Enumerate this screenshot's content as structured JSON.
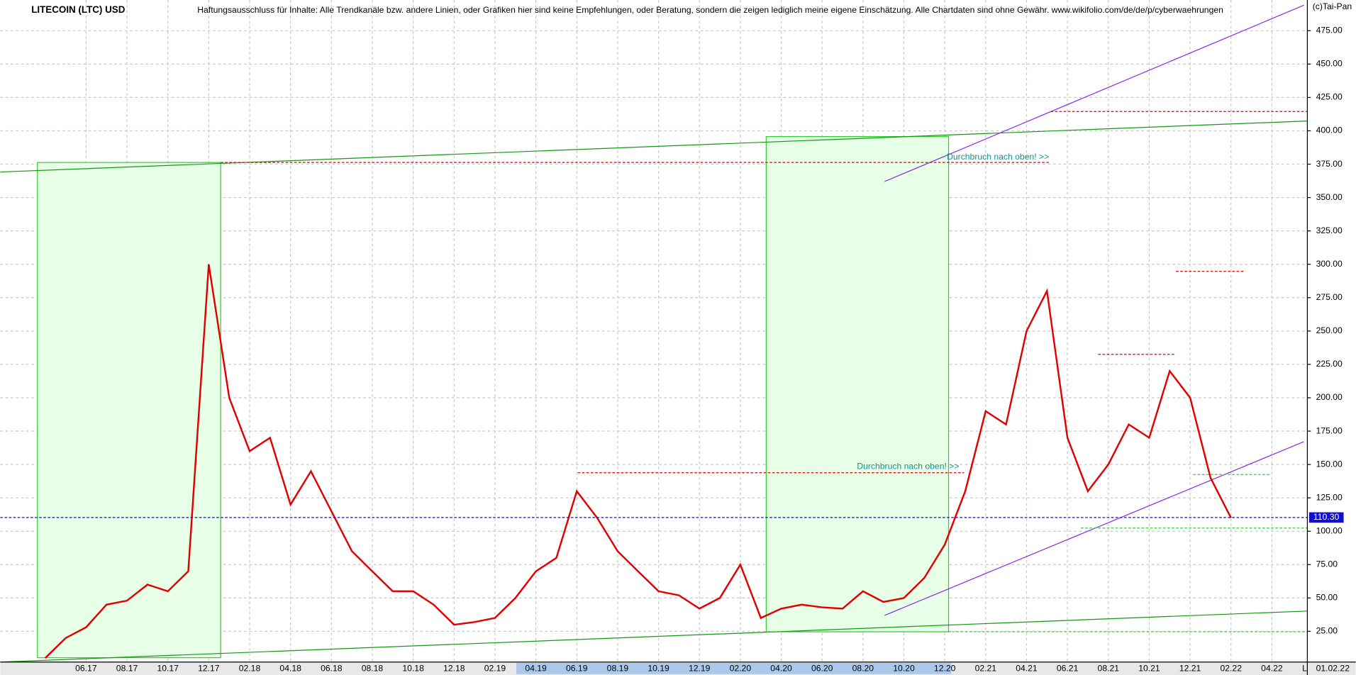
{
  "chart_data": {
    "type": "line",
    "title": "LITECOIN (LTC) USD",
    "subtitle": "Haftungsausschluss für Inhalte: Alle Trendkanäle bzw. andere Linien, oder Grafiken hier sind keine Empfehlungen, oder Beratung, sondern die zeigen lediglich meine eigene Einschätzung. Alle Chartdaten sind ohne Gewähr.  www.wikifolio.com/de/de/p/cyberwaehrungen",
    "copyright": "(c)Tai-Pan",
    "date_label": "01.02.22",
    "scale_label": "L",
    "annotations": [
      "Durchbruch nach oben! >>",
      "Durchbruch nach oben! >>"
    ],
    "categories": [
      null,
      null,
      "06.17",
      null,
      "08.17",
      null,
      "10.17",
      null,
      "12.17",
      null,
      "02.18",
      null,
      "04.18",
      null,
      "06.18",
      null,
      "08.18",
      null,
      "10.18",
      null,
      "12.18",
      null,
      "02.19",
      null,
      "04.19",
      null,
      "06.19",
      null,
      "08.19",
      null,
      "10.19",
      null,
      "12.19",
      null,
      "02.20",
      null,
      "04.20",
      null,
      "06.20",
      null,
      "08.20",
      null,
      "10.20",
      null,
      "12.20",
      null,
      "02.21",
      null,
      "04.21",
      null,
      "06.21",
      null,
      "08.21",
      null,
      "10.21",
      null,
      "12.21",
      null,
      "02.22",
      null,
      "04.22",
      null
    ],
    "series": [
      {
        "name": "LTC",
        "color": "#e00000",
        "values": [
          5,
          20,
          28,
          45,
          48,
          60,
          55,
          70,
          300,
          200,
          160,
          170,
          120,
          145,
          115,
          85,
          70,
          55,
          55,
          45,
          30,
          32,
          35,
          50,
          70,
          80,
          130,
          110,
          85,
          70,
          55,
          52,
          42,
          50,
          75,
          35,
          42,
          45,
          43,
          42,
          55,
          47,
          50,
          65,
          90,
          130,
          190,
          180,
          250,
          280,
          170,
          130,
          150,
          180,
          170,
          220,
          200,
          140,
          110,
          null,
          null,
          null
        ]
      }
    ],
    "current_price": {
      "value": 110.3,
      "label": "110.30"
    },
    "ylim": [
      2,
      498
    ],
    "yticks": [
      {
        "value": 25,
        "label": "25.00"
      },
      {
        "value": 50,
        "label": "50.00"
      },
      {
        "value": 75,
        "label": "75.00"
      },
      {
        "value": 100,
        "label": "100.00"
      },
      {
        "value": 125,
        "label": "125.00"
      },
      {
        "value": 150,
        "label": "150.00"
      },
      {
        "value": 175,
        "label": "175.00"
      },
      {
        "value": 200,
        "label": "200.00"
      },
      {
        "value": 225,
        "label": "225.00"
      },
      {
        "value": 250,
        "label": "250.00"
      },
      {
        "value": 275,
        "label": "275.00"
      },
      {
        "value": 300,
        "label": "300.00"
      },
      {
        "value": 325,
        "label": "325.00"
      },
      {
        "value": 350,
        "label": "350.00"
      },
      {
        "value": 375,
        "label": "375.00"
      },
      {
        "value": 400,
        "label": "400.00"
      },
      {
        "value": 425,
        "label": "425.00"
      },
      {
        "value": 450,
        "label": "450.00"
      },
      {
        "value": 475,
        "label": "475.00"
      }
    ],
    "grid": true
  }
}
